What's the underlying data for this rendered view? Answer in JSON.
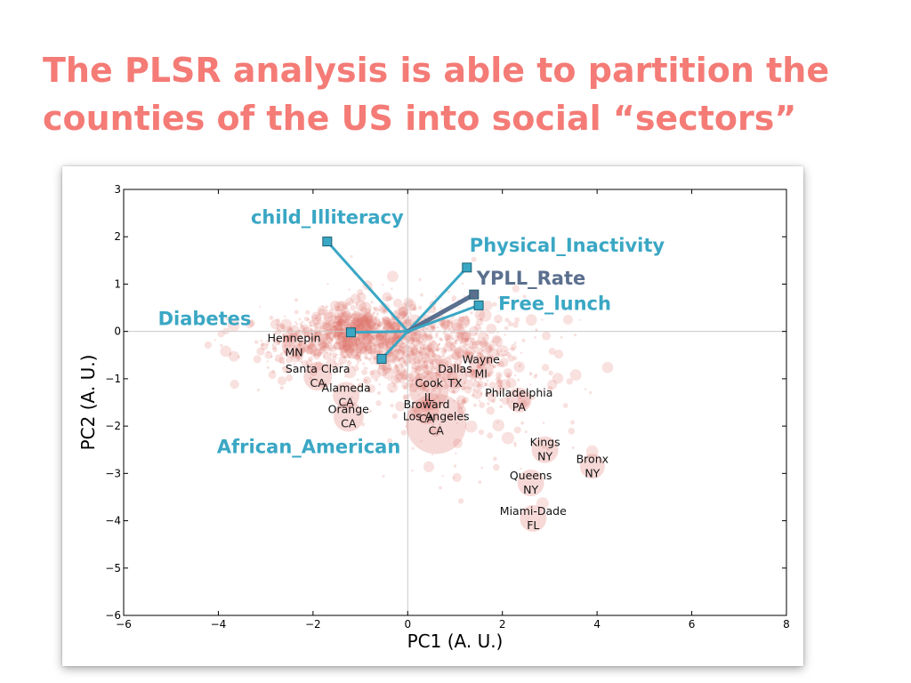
{
  "slide": {
    "title_line1": "The PLSR analysis is able to partition the",
    "title_line2": "counties of the US into social “sectors”",
    "title_color": "#f47b76"
  },
  "chart_data": {
    "type": "scatter",
    "title": "",
    "xlabel": "PC1 (A. U.)",
    "ylabel": "PC2 (A. U.)",
    "xlim": [
      -6,
      8
    ],
    "ylim": [
      -6,
      3
    ],
    "xticks": [
      -6,
      -4,
      -2,
      0,
      2,
      4,
      6,
      8
    ],
    "yticks": [
      -6,
      -5,
      -4,
      -3,
      -2,
      -1,
      0,
      1,
      2,
      3
    ],
    "xtick_labels": [
      "−6",
      "−4",
      "−2",
      "0",
      "2",
      "4",
      "6",
      "8"
    ],
    "ytick_labels": [
      "−6",
      "−5",
      "−4",
      "−3",
      "−2",
      "−1",
      "0",
      "1",
      "2",
      "3"
    ],
    "grid": false,
    "zero_lines": true,
    "point_color": "#e0786e",
    "loading_color": "#3aa7c4",
    "loading_highlight_color": "#5b6f8e",
    "loadings": [
      {
        "name": "child_Illiteracy",
        "x": -1.7,
        "y": 1.9
      },
      {
        "name": "Physical_Inactivity",
        "x": 1.25,
        "y": 1.35
      },
      {
        "name": "YPLL_Rate",
        "x": 1.4,
        "y": 0.78,
        "highlight": true
      },
      {
        "name": "Free_lunch",
        "x": 1.5,
        "y": 0.55
      },
      {
        "name": "Diabetes",
        "x": -1.2,
        "y": -0.02
      },
      {
        "name": "African_American",
        "x": -0.55,
        "y": -0.58
      }
    ],
    "highlighted_counties": [
      {
        "name": "Hennepin",
        "state": "MN",
        "x": -2.4,
        "y": -0.3,
        "size": 14
      },
      {
        "name": "Santa Clara",
        "state": "CA",
        "x": -1.9,
        "y": -0.95,
        "size": 16
      },
      {
        "name": "Alameda",
        "state": "CA",
        "x": -1.3,
        "y": -1.35,
        "size": 15
      },
      {
        "name": "Orange",
        "state": "CA",
        "x": -1.25,
        "y": -1.8,
        "size": 17
      },
      {
        "name": "Cook",
        "state": "IL",
        "x": 0.45,
        "y": -1.25,
        "size": 22
      },
      {
        "name": "Broward",
        "state": "CA",
        "x": 0.4,
        "y": -1.7,
        "size": 14
      },
      {
        "name": "Los Angeles",
        "state": "CA",
        "x": 0.6,
        "y": -1.95,
        "size": 34
      },
      {
        "name": "Dallas",
        "state": "TX",
        "x": 1.0,
        "y": -0.95,
        "size": 14
      },
      {
        "name": "Wayne",
        "state": "MI",
        "x": 1.55,
        "y": -0.75,
        "size": 14
      },
      {
        "name": "Philadelphia",
        "state": "PA",
        "x": 2.35,
        "y": -1.45,
        "size": 14
      },
      {
        "name": "Kings",
        "state": "NY",
        "x": 2.9,
        "y": -2.5,
        "size": 15
      },
      {
        "name": "Queens",
        "state": "NY",
        "x": 2.6,
        "y": -3.2,
        "size": 15
      },
      {
        "name": "Bronx",
        "state": "NY",
        "x": 3.9,
        "y": -2.85,
        "size": 14
      },
      {
        "name": "Miami-Dade",
        "state": "FL",
        "x": 2.65,
        "y": -3.95,
        "size": 15
      }
    ]
  }
}
